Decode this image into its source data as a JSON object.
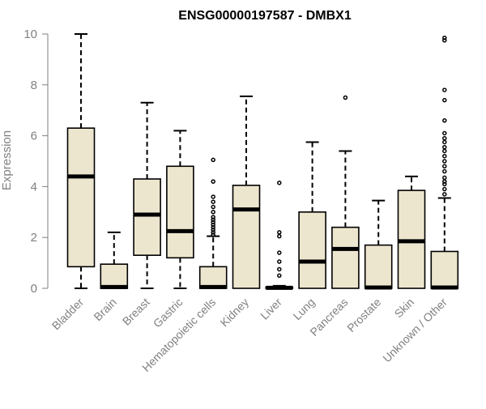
{
  "chart_data": {
    "type": "box",
    "title": "ENSG00000197587 - DMBX1",
    "xlabel": "",
    "ylabel": "Expression",
    "ylim": [
      0,
      10
    ],
    "yticks": [
      0,
      2,
      4,
      6,
      8,
      10
    ],
    "grid": false,
    "legend": "none",
    "colors": {
      "box_fill": "#ede6cf",
      "stroke": "#000000",
      "axis_text": "#808080"
    },
    "categories": [
      "Bladder",
      "Brain",
      "Breast",
      "Gastric",
      "Hematopoietic cells",
      "Kidney",
      "Liver",
      "Lung",
      "Pancreas",
      "Prostate",
      "Skin",
      "Unknown / Other"
    ],
    "boxes": [
      {
        "category": "Bladder",
        "whisker_low": 0,
        "q1": 0.85,
        "median": 4.4,
        "q3": 6.3,
        "whisker_high": 10,
        "outliers": []
      },
      {
        "category": "Brain",
        "whisker_low": 0,
        "q1": 0,
        "median": 0.05,
        "q3": 0.95,
        "whisker_high": 2.2,
        "outliers": []
      },
      {
        "category": "Breast",
        "whisker_low": 0,
        "q1": 1.3,
        "median": 2.9,
        "q3": 4.3,
        "whisker_high": 7.3,
        "outliers": []
      },
      {
        "category": "Gastric",
        "whisker_low": 0,
        "q1": 1.2,
        "median": 2.25,
        "q3": 4.8,
        "whisker_high": 6.2,
        "outliers": []
      },
      {
        "category": "Hematopoietic cells",
        "whisker_low": 0,
        "q1": 0,
        "median": 0.05,
        "q3": 0.85,
        "whisker_high": 2.05,
        "outliers": [
          2.1,
          2.2,
          2.3,
          2.4,
          2.5,
          2.6,
          2.7,
          2.8,
          3.0,
          3.2,
          3.4,
          3.6,
          4.2,
          5.05
        ]
      },
      {
        "category": "Kidney",
        "whisker_low": 0,
        "q1": 0,
        "median": 3.1,
        "q3": 4.05,
        "whisker_high": 7.55,
        "outliers": []
      },
      {
        "category": "Liver",
        "whisker_low": 0,
        "q1": 0,
        "median": 0.02,
        "q3": 0.05,
        "whisker_high": 0.1,
        "outliers": [
          0.5,
          0.75,
          1.05,
          1.4,
          2.05,
          2.2,
          4.15
        ]
      },
      {
        "category": "Lung",
        "whisker_low": 0,
        "q1": 0,
        "median": 1.05,
        "q3": 3.0,
        "whisker_high": 5.75,
        "outliers": []
      },
      {
        "category": "Pancreas",
        "whisker_low": 0,
        "q1": 0,
        "median": 1.55,
        "q3": 2.4,
        "whisker_high": 5.4,
        "outliers": [
          7.5
        ]
      },
      {
        "category": "Prostate",
        "whisker_low": 0,
        "q1": 0,
        "median": 0.03,
        "q3": 1.7,
        "whisker_high": 3.45,
        "outliers": []
      },
      {
        "category": "Skin",
        "whisker_low": 0,
        "q1": 0,
        "median": 1.85,
        "q3": 3.85,
        "whisker_high": 4.4,
        "outliers": []
      },
      {
        "category": "Unknown / Other",
        "whisker_low": 0,
        "q1": 0,
        "median": 0.03,
        "q3": 1.45,
        "whisker_high": 3.55,
        "outliers": [
          3.7,
          3.9,
          4.1,
          4.2,
          4.35,
          4.6,
          4.8,
          5.0,
          5.2,
          5.4,
          5.55,
          5.75,
          5.9,
          6.1,
          6.6,
          7.4,
          7.8,
          9.75,
          9.85
        ]
      }
    ]
  }
}
